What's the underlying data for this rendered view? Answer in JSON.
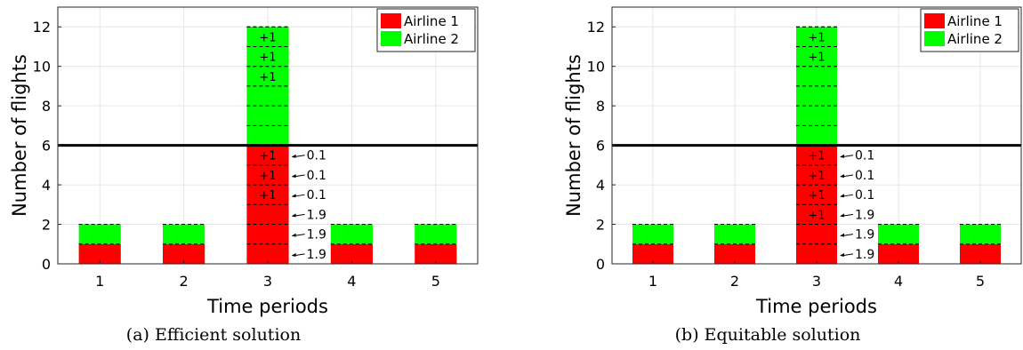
{
  "colors": {
    "airline1": "#ff0000",
    "airline2": "#00ff00",
    "capacity_line": "#000000",
    "grid": "#e6e6e6"
  },
  "chart_data": [
    {
      "type": "bar",
      "stacked": true,
      "caption": "(a) Efficient solution",
      "xlabel": "Time periods",
      "ylabel": "Number of flights",
      "categories": [
        "1",
        "2",
        "3",
        "4",
        "5"
      ],
      "ylim": [
        0,
        13
      ],
      "yticks": [
        0,
        2,
        4,
        6,
        8,
        10,
        12
      ],
      "grid": true,
      "legend_position": "top-right",
      "series": [
        {
          "name": "Airline 1",
          "values": [
            1,
            1,
            6,
            1,
            1
          ]
        },
        {
          "name": "Airline 2",
          "values": [
            1,
            1,
            6,
            1,
            1
          ]
        }
      ],
      "capacity": 6,
      "unit_lines": [
        [
          1
        ],
        [
          1
        ],
        [
          1,
          2,
          3,
          4,
          5,
          6,
          7,
          8,
          9,
          10,
          11,
          12
        ],
        [
          1
        ],
        [
          1
        ]
      ],
      "plus_labels": [
        {
          "category": "3",
          "y": 11.5,
          "text": "+1"
        },
        {
          "category": "3",
          "y": 10.5,
          "text": "+1"
        },
        {
          "category": "3",
          "y": 9.5,
          "text": "+1"
        },
        {
          "category": "3",
          "y": 5.5,
          "text": "+1"
        },
        {
          "category": "3",
          "y": 4.5,
          "text": "+1"
        },
        {
          "category": "3",
          "y": 3.5,
          "text": "+1"
        }
      ],
      "side_labels": [
        {
          "category": "3",
          "y": 5.5,
          "text": "0.1"
        },
        {
          "category": "3",
          "y": 4.5,
          "text": "0.1"
        },
        {
          "category": "3",
          "y": 3.5,
          "text": "0.1"
        },
        {
          "category": "3",
          "y": 2.5,
          "text": "1.9"
        },
        {
          "category": "3",
          "y": 1.5,
          "text": "1.9"
        },
        {
          "category": "3",
          "y": 0.5,
          "text": "1.9"
        }
      ]
    },
    {
      "type": "bar",
      "stacked": true,
      "caption": "(b) Equitable solution",
      "xlabel": "Time periods",
      "ylabel": "Number of flights",
      "categories": [
        "1",
        "2",
        "3",
        "4",
        "5"
      ],
      "ylim": [
        0,
        13
      ],
      "yticks": [
        0,
        2,
        4,
        6,
        8,
        10,
        12
      ],
      "grid": true,
      "legend_position": "top-right",
      "series": [
        {
          "name": "Airline 1",
          "values": [
            1,
            1,
            6,
            1,
            1
          ]
        },
        {
          "name": "Airline 2",
          "values": [
            1,
            1,
            6,
            1,
            1
          ]
        }
      ],
      "capacity": 6,
      "unit_lines": [
        [
          1
        ],
        [
          1
        ],
        [
          1,
          2,
          3,
          4,
          5,
          6,
          7,
          8,
          9,
          10,
          11,
          12
        ],
        [
          1
        ],
        [
          1
        ]
      ],
      "plus_labels": [
        {
          "category": "3",
          "y": 11.5,
          "text": "+1"
        },
        {
          "category": "3",
          "y": 10.5,
          "text": "+1"
        },
        {
          "category": "3",
          "y": 5.5,
          "text": "+1"
        },
        {
          "category": "3",
          "y": 4.5,
          "text": "+1"
        },
        {
          "category": "3",
          "y": 3.5,
          "text": "+1"
        },
        {
          "category": "3",
          "y": 2.5,
          "text": "+1"
        }
      ],
      "side_labels": [
        {
          "category": "3",
          "y": 5.5,
          "text": "0.1"
        },
        {
          "category": "3",
          "y": 4.5,
          "text": "0.1"
        },
        {
          "category": "3",
          "y": 3.5,
          "text": "0.1"
        },
        {
          "category": "3",
          "y": 2.5,
          "text": "1.9"
        },
        {
          "category": "3",
          "y": 1.5,
          "text": "1.9"
        },
        {
          "category": "3",
          "y": 0.5,
          "text": "1.9"
        }
      ]
    }
  ]
}
